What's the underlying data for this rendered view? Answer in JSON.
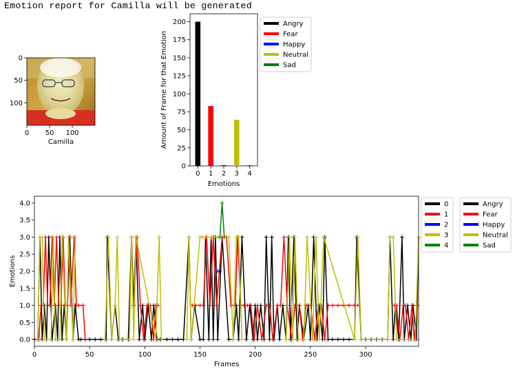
{
  "report_title": "Emotion report for Camilla will be generated",
  "chart_data": [
    {
      "type": "image",
      "xlabel": "Camilla",
      "xticks": [
        0,
        50,
        100
      ],
      "yticks": [
        0,
        50,
        100
      ],
      "image_extent": [
        150,
        150
      ],
      "colors": {
        "background": "#c89a2e",
        "face": "#e6e0a0",
        "shirt": "#d83020"
      }
    },
    {
      "type": "bar",
      "categories": [
        0,
        1,
        2,
        3,
        4
      ],
      "values": [
        200,
        83,
        1,
        64,
        1
      ],
      "bar_colors": [
        "#000000",
        "#ff0000",
        "#0000ff",
        "#bfbf00",
        "#008000"
      ],
      "xlabel": "Emotions",
      "ylabel": "Amount of Frame for that Emotion",
      "ylim": [
        0,
        211
      ],
      "yticks": [
        0,
        25,
        50,
        75,
        100,
        125,
        150,
        175,
        200
      ],
      "legend": [
        {
          "label": "Angry",
          "color": "#000000"
        },
        {
          "label": "Fear",
          "color": "#ff0000"
        },
        {
          "label": "Happy",
          "color": "#0000ff"
        },
        {
          "label": "Neutral",
          "color": "#bfbf00"
        },
        {
          "label": "Sad",
          "color": "#008000"
        }
      ],
      "legend_position": "outside-right"
    },
    {
      "type": "line",
      "xlabel": "Frames",
      "ylabel": "Emotions",
      "xlim": [
        0,
        348
      ],
      "ylim": [
        -0.2,
        4.2
      ],
      "xticks": [
        0,
        50,
        100,
        150,
        200,
        250,
        300
      ],
      "yticks": [
        0.0,
        0.5,
        1.0,
        1.5,
        2.0,
        2.5,
        3.0,
        3.5,
        4.0
      ],
      "series_colors": [
        "#000000",
        "#ff0000",
        "#0000ff",
        "#bfbf00",
        "#008000"
      ],
      "segments": [
        {
          "color": "#000000",
          "x": [
            0,
            3,
            5,
            7,
            9,
            11,
            13,
            16,
            19,
            21,
            23,
            25,
            27,
            29,
            32,
            35,
            37,
            40,
            42,
            46,
            50,
            55,
            60,
            65,
            66,
            70,
            73,
            76,
            80,
            85,
            88,
            90,
            92,
            95,
            98,
            100,
            103,
            106,
            108,
            111,
            114,
            120,
            125,
            130,
            135,
            140,
            142,
            145,
            150,
            153,
            155,
            158,
            160,
            162,
            164,
            166,
            170,
            176,
            180,
            183,
            185,
            188,
            192,
            195,
            198,
            200,
            202,
            205,
            208,
            210,
            213,
            215,
            217,
            220,
            222,
            225,
            228,
            230,
            232,
            235,
            238,
            240,
            244,
            248,
            250,
            253,
            256,
            258,
            261,
            263,
            266,
            270,
            275,
            280,
            285,
            290,
            292,
            296,
            300,
            305,
            310,
            315,
            320,
            322,
            325,
            327,
            330,
            333,
            335,
            338,
            341,
            343,
            346,
            348
          ],
          "y": [
            0,
            0,
            3,
            0,
            1,
            0,
            3,
            0,
            1,
            0,
            3,
            0,
            1,
            0,
            3,
            0,
            1,
            0,
            0,
            0,
            0,
            0,
            0,
            0,
            3,
            0,
            1,
            0,
            0,
            0,
            3,
            1,
            3,
            0,
            1,
            0,
            1,
            0,
            1,
            0,
            0,
            0,
            0,
            0,
            0,
            3,
            0,
            1,
            0,
            0,
            3,
            0,
            3,
            0,
            3,
            0,
            3,
            0,
            0,
            1,
            0,
            3,
            0,
            1,
            0,
            1,
            0,
            1,
            0,
            3,
            0,
            3,
            0,
            1,
            0,
            1,
            0,
            3,
            0,
            3,
            0,
            1,
            0,
            1,
            0,
            3,
            0,
            1,
            0,
            3,
            0,
            0,
            0,
            0,
            0,
            0,
            3,
            0,
            0,
            0,
            0,
            0,
            0,
            3,
            0,
            1,
            0,
            3,
            0,
            1,
            0,
            1,
            0,
            3
          ]
        },
        {
          "color": "#ff0000",
          "x": [
            4,
            6,
            8,
            10,
            12,
            14,
            16,
            18,
            20,
            22,
            24,
            26,
            28,
            30,
            31,
            33,
            36,
            38,
            40,
            44,
            46
          ],
          "y": [
            0,
            1,
            1,
            3,
            1,
            1,
            3,
            1,
            3,
            1,
            1,
            3,
            1,
            1,
            3,
            1,
            3,
            1,
            1,
            1,
            0
          ]
        },
        {
          "color": "#ff0000",
          "x": [
            90,
            93,
            96,
            99,
            102,
            105,
            108,
            110,
            112
          ],
          "y": [
            1,
            3,
            1,
            0,
            1,
            1,
            0,
            1,
            1
          ]
        },
        {
          "color": "#ff0000",
          "x": [
            143,
            146,
            150,
            153,
            156,
            159,
            162,
            165,
            170,
            174,
            178,
            182,
            184,
            187,
            190,
            193,
            196,
            199,
            202,
            206,
            210,
            213,
            216,
            220,
            223,
            226,
            229,
            233,
            236,
            240,
            243,
            246,
            250,
            254,
            257,
            260,
            263,
            266,
            270,
            275,
            280,
            285,
            290,
            293
          ],
          "y": [
            1,
            1,
            1,
            1,
            3,
            1,
            3,
            1,
            3,
            3,
            1,
            1,
            3,
            1,
            1,
            1,
            1,
            0,
            1,
            0,
            1,
            1,
            0,
            1,
            1,
            3,
            1,
            0,
            1,
            1,
            0,
            1,
            1,
            0,
            1,
            1,
            0,
            1,
            1,
            1,
            1,
            1,
            1,
            1
          ]
        },
        {
          "color": "#ff0000",
          "x": [
            326,
            328,
            331,
            334,
            336,
            339,
            342,
            344,
            347
          ],
          "y": [
            1,
            1,
            0,
            1,
            1,
            0,
            1,
            0,
            1
          ]
        },
        {
          "color": "#bfbf00",
          "x": [
            3,
            5,
            7,
            9,
            15,
            17,
            19,
            23,
            25,
            29,
            31,
            35,
            37
          ],
          "y": [
            0,
            3,
            3,
            0,
            0,
            3,
            0,
            0,
            3,
            0,
            3,
            0,
            3
          ]
        },
        {
          "color": "#bfbf00",
          "x": [
            64,
            67,
            70,
            73,
            75,
            77,
            79,
            86,
            88,
            90,
            92,
            110,
            113,
            115
          ],
          "y": [
            0,
            3,
            0,
            1,
            3,
            0,
            0,
            0,
            3,
            0,
            3,
            0,
            3,
            0
          ]
        },
        {
          "color": "#bfbf00",
          "x": [
            138,
            140,
            142,
            150,
            152,
            155,
            160,
            163,
            166,
            168,
            172,
            176,
            180,
            183,
            185,
            188
          ],
          "y": [
            0,
            3,
            0,
            3,
            3,
            3,
            3,
            3,
            3,
            3,
            3,
            3,
            0,
            3,
            3,
            0
          ]
        },
        {
          "color": "#bfbf00",
          "x": [
            228,
            231,
            234,
            236,
            239,
            244,
            247,
            252,
            255,
            258,
            262,
            290,
            293,
            296,
            320,
            322,
            325,
            328,
            345,
            348
          ],
          "y": [
            0,
            3,
            0,
            3,
            0,
            0,
            3,
            0,
            3,
            0,
            3,
            0,
            3,
            0,
            0,
            3,
            3,
            0,
            0,
            3
          ]
        },
        {
          "color": "#008000",
          "x": [
            168,
            170,
            172
          ],
          "y": [
            3,
            4,
            3
          ]
        },
        {
          "color": "#0000ff",
          "x": [
            166,
            168
          ],
          "y": [
            2,
            2
          ]
        }
      ],
      "legend_numeric": [
        {
          "label": "0",
          "color": "#000000"
        },
        {
          "label": "1",
          "color": "#ff0000"
        },
        {
          "label": "2",
          "color": "#0000ff"
        },
        {
          "label": "3",
          "color": "#bfbf00"
        },
        {
          "label": "4",
          "color": "#008000"
        }
      ],
      "legend_named": [
        {
          "label": "Angry",
          "color": "#000000"
        },
        {
          "label": "Fear",
          "color": "#ff0000"
        },
        {
          "label": "Happy",
          "color": "#0000ff"
        },
        {
          "label": "Neutral",
          "color": "#bfbf00"
        },
        {
          "label": "Sad",
          "color": "#008000"
        }
      ],
      "legend_position": "outside-right"
    }
  ]
}
